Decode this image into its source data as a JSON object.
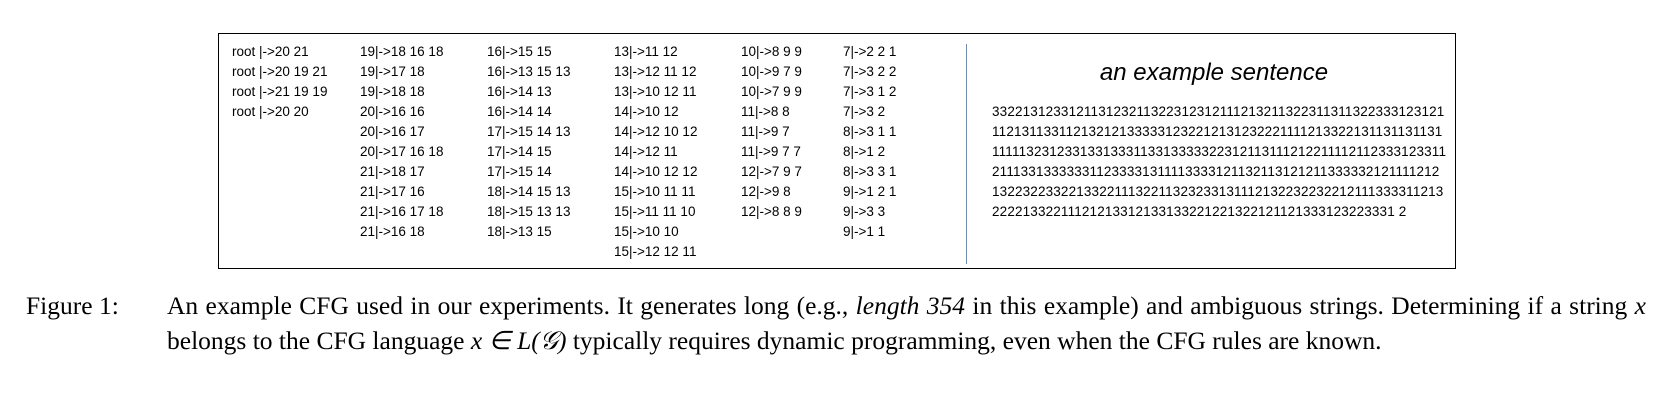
{
  "rules": {
    "col1": [
      "root |->20 21",
      "root |->20 19 21",
      "root |->21 19 19",
      "root |->20 20"
    ],
    "col2": [
      "19|->18 16 18",
      "19|->17 18",
      "19|->18 18",
      "20|->16 16",
      "20|->16 17",
      "20|->17 16 18",
      "21|->18 17",
      "21|->17 16",
      "21|->16 17 18",
      "21|->16 18"
    ],
    "col3": [
      "16|->15 15",
      "16|->13 15 13",
      "16|->14 13",
      "16|->14 14",
      "17|->15 14 13",
      "17|->14 15",
      "17|->15 14",
      "18|->14 15 13",
      "18|->15 13 13",
      "18|->13 15"
    ],
    "col4": [
      "13|->11 12",
      "13|->12 11 12",
      "13|->10 12 11",
      "14|->10 12",
      "14|->12 10 12",
      "14|->12 11",
      "14|->10 12 12",
      "15|->10 11 11",
      "15|->11 11 10",
      "15|->10 10",
      "15|->12 12 11"
    ],
    "col5": [
      "10|->8 9 9",
      "10|->9 7 9",
      "10|->7 9 9",
      "11|->8 8",
      "11|->9 7",
      "11|->9 7 7",
      "12|->7 9 7",
      "12|->9 8",
      "12|->8 8 9"
    ],
    "col6": [
      "7|->2 2 1",
      "7|->3 2 2",
      "7|->3 1 2",
      "7|->3 2",
      "8|->3 1 1",
      "8|->1 2",
      "8|->3 3 1",
      "9|->1 2 1",
      "9|->3 3",
      "9|->1 1"
    ]
  },
  "example": {
    "title": "an example sentence",
    "sentence": "332213123312113123211322312312111213211322311311322333123121112131133112132121333331232212131232221111213322131131131131111113231233133133311331333332231211311121221111211233312331121113313333331123333131111333312113211312121133333212111121213223223322133221113221132323313111213223223221211133331121322221332211121213312133133221221322121121333123223331 2"
  },
  "caption": {
    "label": "Figure 1:",
    "text_1": "An example CFG used in our experiments. It generates long (e.g., ",
    "italic_1": "length 354",
    "text_2": " in this example) and ambiguous strings. Determining if a string ",
    "math_x": "x",
    "text_3": " belongs to the CFG language ",
    "math_expr": "x ∈ L(𝒢)",
    "text_4": " typically requires dynamic programming, even when the CFG rules are known."
  }
}
